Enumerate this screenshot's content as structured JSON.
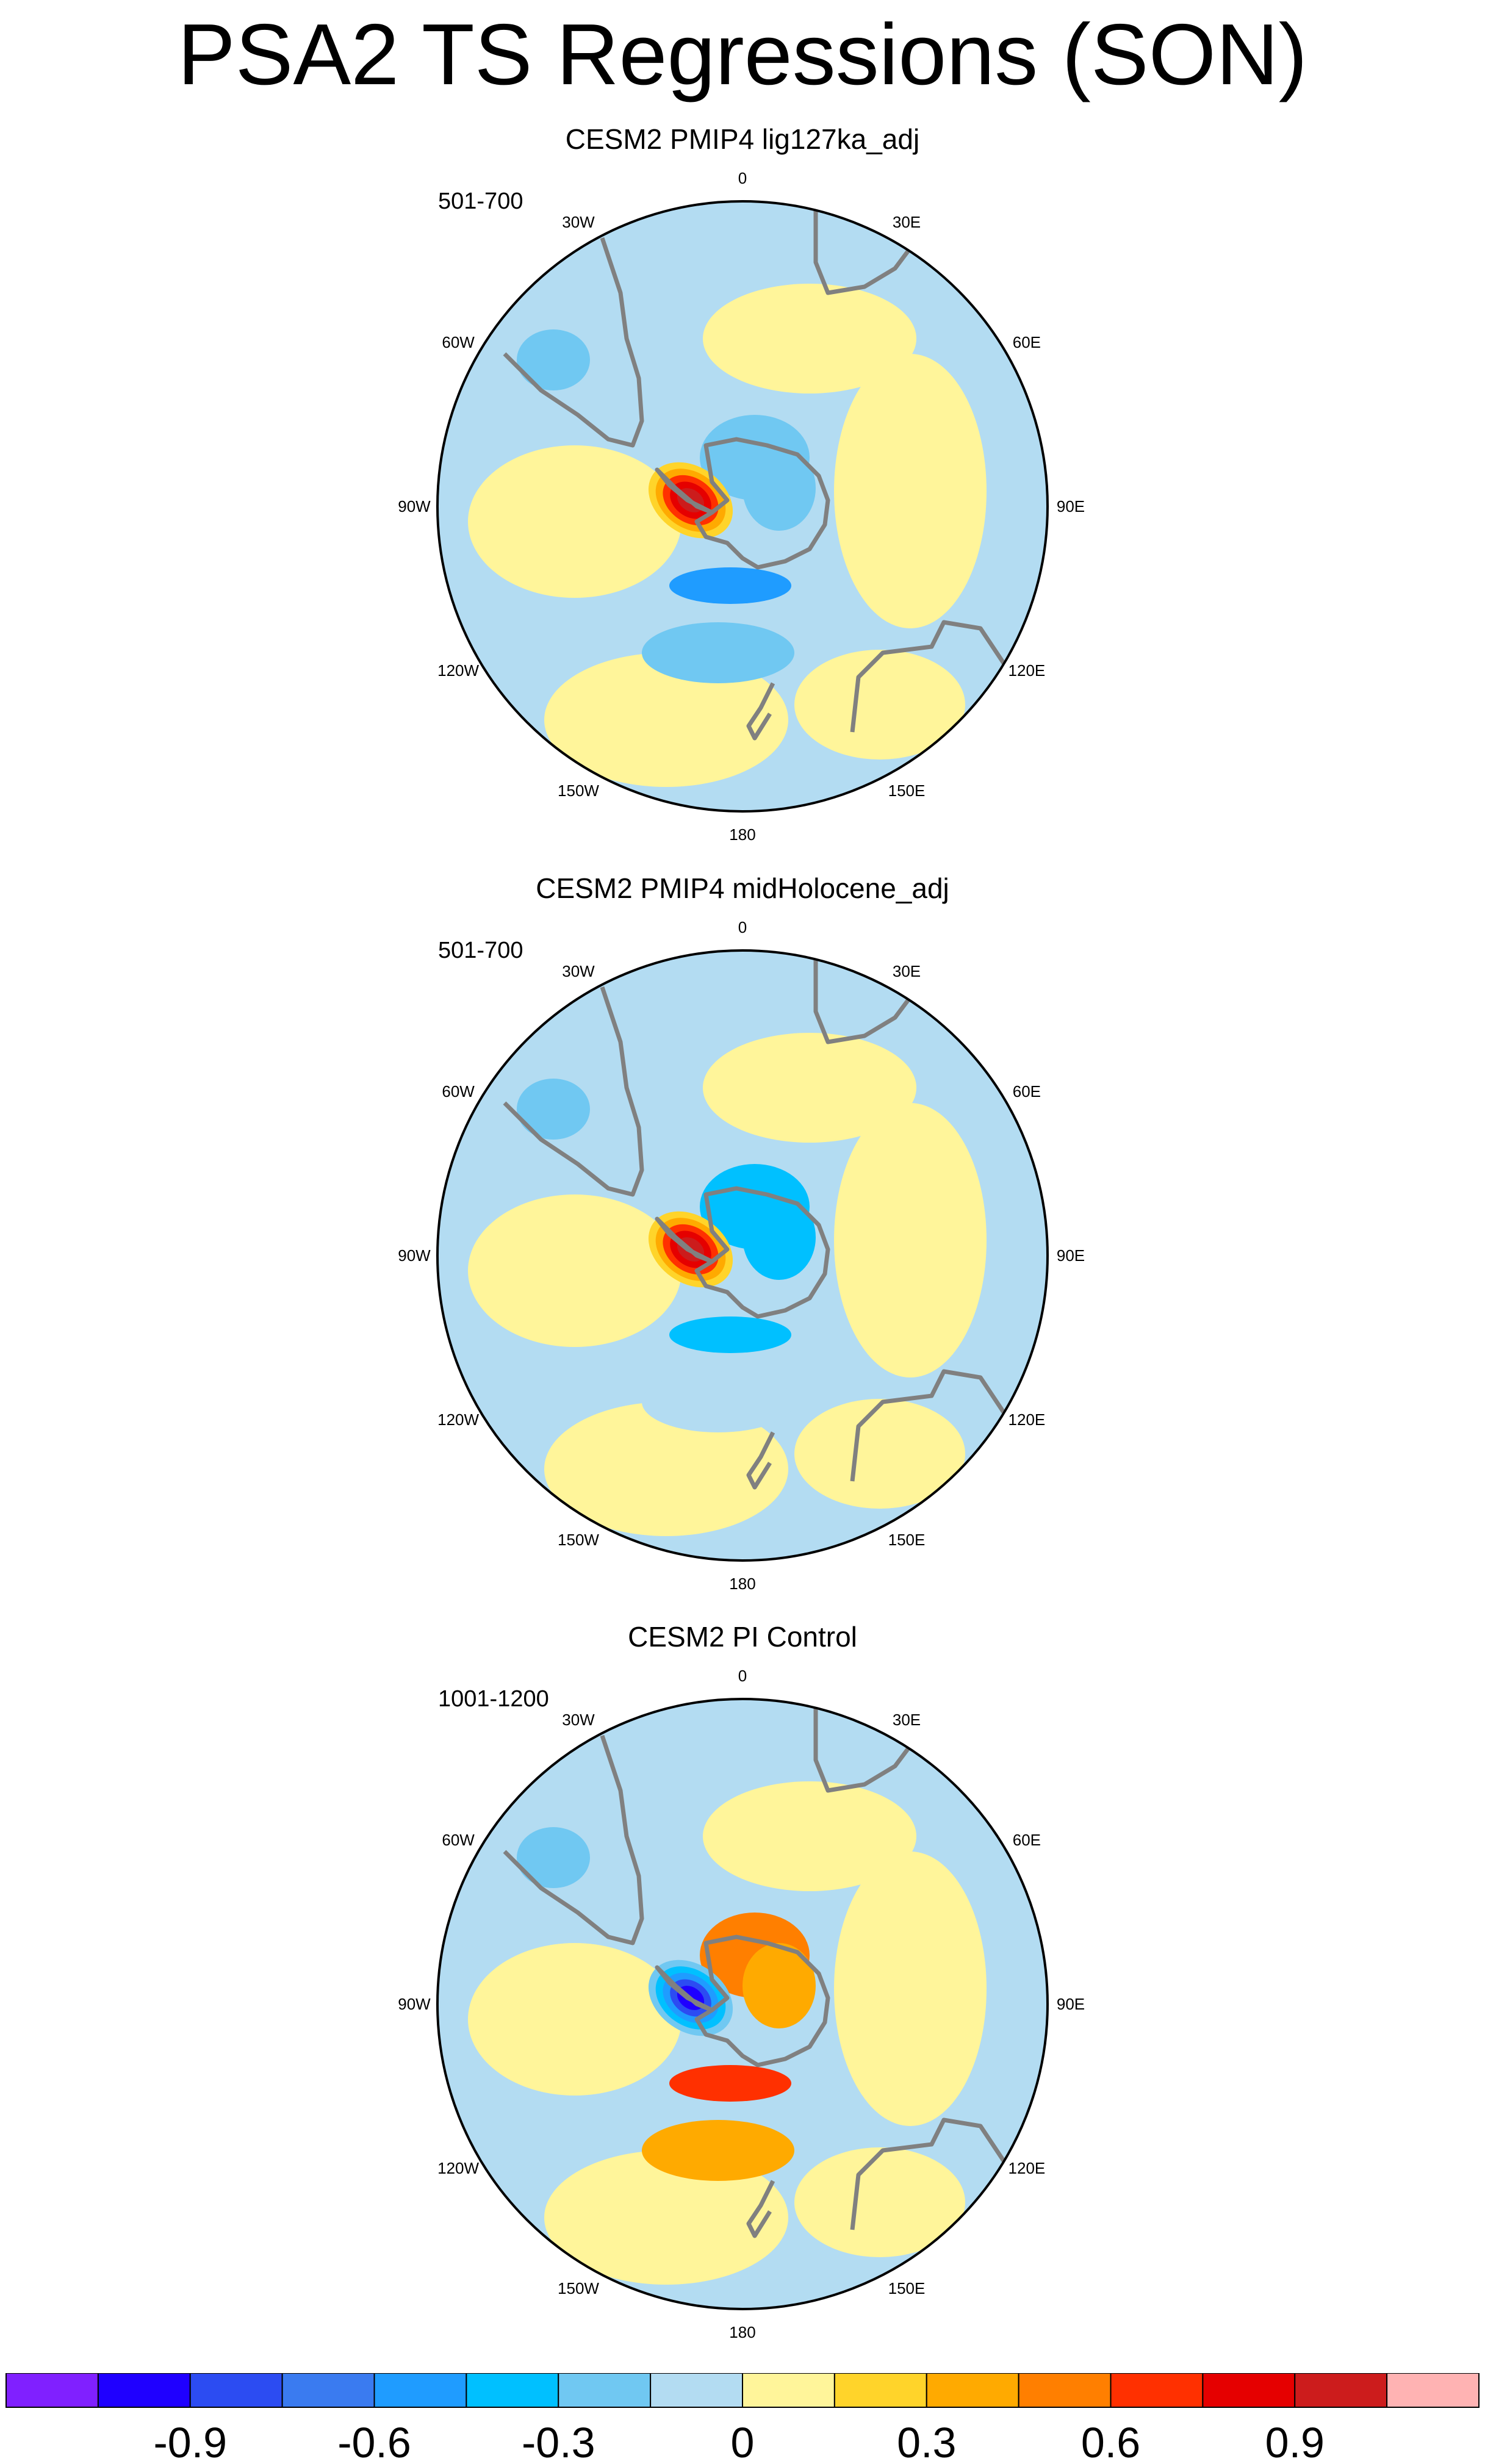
{
  "title": "PSA2 TS Regressions (SON)",
  "colors": {
    "land_outline": "#808080",
    "palette": [
      "#8020ff",
      "#1f00ff",
      "#2c4cf2",
      "#3a7bf0",
      "#1f9cff",
      "#00c0ff",
      "#70c8f2",
      "#b3dcf2",
      "#fff59a",
      "#ffd42a",
      "#ffaa00",
      "#ff7f00",
      "#ff3000",
      "#e50000",
      "#cc1c1c",
      "#ffb3b3"
    ]
  },
  "longitude_labels": [
    "0",
    "30E",
    "60E",
    "90E",
    "120E",
    "150E",
    "180",
    "150W",
    "120W",
    "90W",
    "60W",
    "30W"
  ],
  "panels": [
    {
      "title": "CESM2 PMIP4 lig127ka_adj",
      "period": "501-700",
      "pattern": {
        "pen": 1,
        "ross": -0.5,
        "weddell": -0.3,
        "pacific_mid": -0.25
      }
    },
    {
      "title": "CESM2 PMIP4 midHolocene_adj",
      "period": "501-700",
      "pattern": {
        "pen": 1,
        "ross": -0.45,
        "weddell": -0.4,
        "pacific_mid": -0.15
      }
    },
    {
      "title": "CESM2 PI Control",
      "period": "1001-1200",
      "pattern": {
        "pen": -1,
        "ross": 0.7,
        "weddell": 0.55,
        "pacific_mid": 0.3
      }
    }
  ],
  "colorbar": {
    "labels": [
      "-0.9",
      "-0.6",
      "-0.3",
      "0",
      "0.3",
      "0.6",
      "0.9"
    ],
    "levels": [
      -1.05,
      -0.9,
      -0.75,
      -0.6,
      -0.45,
      -0.3,
      -0.15,
      0,
      0.15,
      0.3,
      0.45,
      0.6,
      0.75,
      0.9,
      1.05
    ]
  }
}
